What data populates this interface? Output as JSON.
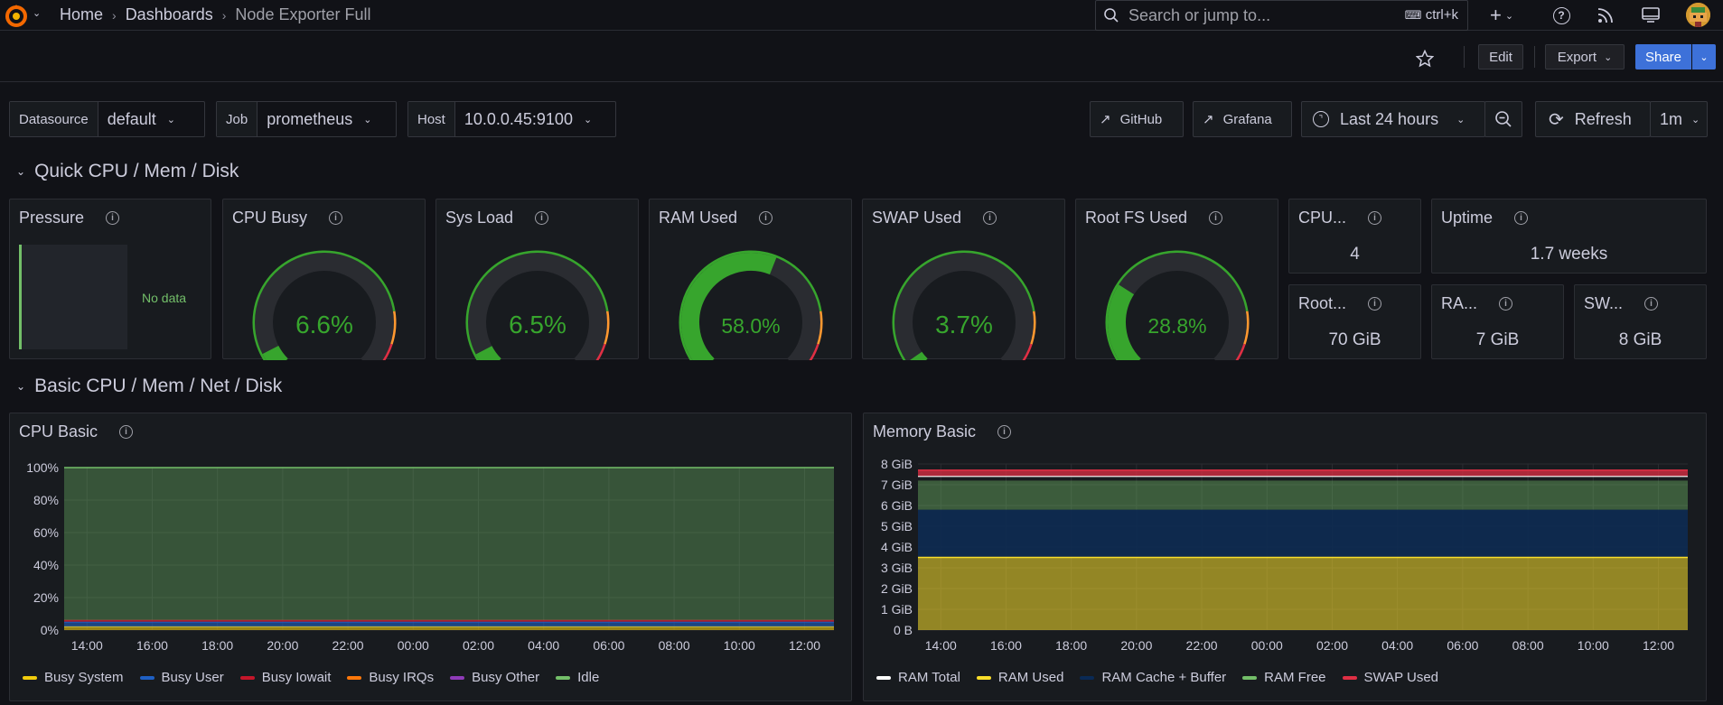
{
  "topbar": {
    "breadcrumbs": [
      "Home",
      "Dashboards",
      "Node Exporter Full"
    ],
    "search_placeholder": "Search or jump to...",
    "search_shortcut": "ctrl+k",
    "icons": [
      "plus-icon",
      "help-icon",
      "news-icon",
      "dock-icon"
    ]
  },
  "actions": {
    "edit": "Edit",
    "export": "Export",
    "share": "Share"
  },
  "variables": [
    {
      "label": "Datasource",
      "value": "default"
    },
    {
      "label": "Job",
      "value": "prometheus"
    },
    {
      "label": "Host",
      "value": "10.0.0.45:9100"
    }
  ],
  "links": {
    "github": "GitHub",
    "grafana": "Grafana"
  },
  "time": {
    "range": "Last 24 hours",
    "refresh": "Refresh",
    "interval": "1m"
  },
  "rows": {
    "quick": "Quick CPU / Mem / Disk",
    "basic": "Basic CPU / Mem / Net / Disk"
  },
  "panels": {
    "pressure": {
      "title": "Pressure",
      "nodata": "No data"
    },
    "gauges": [
      {
        "title": "CPU Busy",
        "value": "6.6%",
        "pct": 6.6,
        "color": "#37a52d"
      },
      {
        "title": "Sys Load",
        "value": "6.5%",
        "pct": 6.5,
        "color": "#37a52d"
      },
      {
        "title": "RAM Used",
        "value": "58.0%",
        "pct": 58.0,
        "color": "#37a52d"
      },
      {
        "title": "SWAP Used",
        "value": "3.7%",
        "pct": 3.7,
        "color": "#37a52d"
      },
      {
        "title": "Root FS Used",
        "value": "28.8%",
        "pct": 28.8,
        "color": "#37a52d"
      }
    ],
    "stats": [
      {
        "title": "CPU...",
        "value": "4"
      },
      {
        "title": "Uptime",
        "value": "1.7 weeks"
      },
      {
        "title": "Root...",
        "value": "70 GiB"
      },
      {
        "title": "RA...",
        "value": "7 GiB"
      },
      {
        "title": "SW...",
        "value": "8 GiB"
      }
    ]
  },
  "chart_data": [
    {
      "type": "area",
      "title": "CPU Basic",
      "x": [
        "14:00",
        "16:00",
        "18:00",
        "20:00",
        "22:00",
        "00:00",
        "02:00",
        "04:00",
        "06:00",
        "08:00",
        "10:00",
        "12:00"
      ],
      "y_ticks": [
        "0%",
        "20%",
        "40%",
        "60%",
        "80%",
        "100%"
      ],
      "ylim": [
        0,
        100
      ],
      "series": [
        {
          "name": "Busy System",
          "color": "#f2cc0c",
          "value": 2
        },
        {
          "name": "Busy User",
          "color": "#1f60c4",
          "value": 3
        },
        {
          "name": "Busy Iowait",
          "color": "#c4162a",
          "value": 1
        },
        {
          "name": "Busy IRQs",
          "color": "#ff780a",
          "value": 0
        },
        {
          "name": "Busy Other",
          "color": "#8f3bb8",
          "value": 0
        },
        {
          "name": "Idle",
          "color": "#73bf69",
          "value": 94
        }
      ]
    },
    {
      "type": "area",
      "title": "Memory Basic",
      "x": [
        "14:00",
        "16:00",
        "18:00",
        "20:00",
        "22:00",
        "00:00",
        "02:00",
        "04:00",
        "06:00",
        "08:00",
        "10:00",
        "12:00"
      ],
      "y_ticks": [
        "0 B",
        "1 GiB",
        "2 GiB",
        "3 GiB",
        "4 GiB",
        "5 GiB",
        "6 GiB",
        "7 GiB",
        "8 GiB"
      ],
      "ylim": [
        0,
        8
      ],
      "series": [
        {
          "name": "RAM Total",
          "color": "#ffffff",
          "value": 7.4
        },
        {
          "name": "RAM Used",
          "color": "#fade2a",
          "value": 3.5
        },
        {
          "name": "RAM Cache + Buffer",
          "color": "#0a2a55",
          "value": 2.3
        },
        {
          "name": "RAM Free",
          "color": "#73bf69",
          "value": 1.4
        },
        {
          "name": "SWAP Used",
          "color": "#e02f44",
          "value": 0.3
        }
      ]
    }
  ]
}
